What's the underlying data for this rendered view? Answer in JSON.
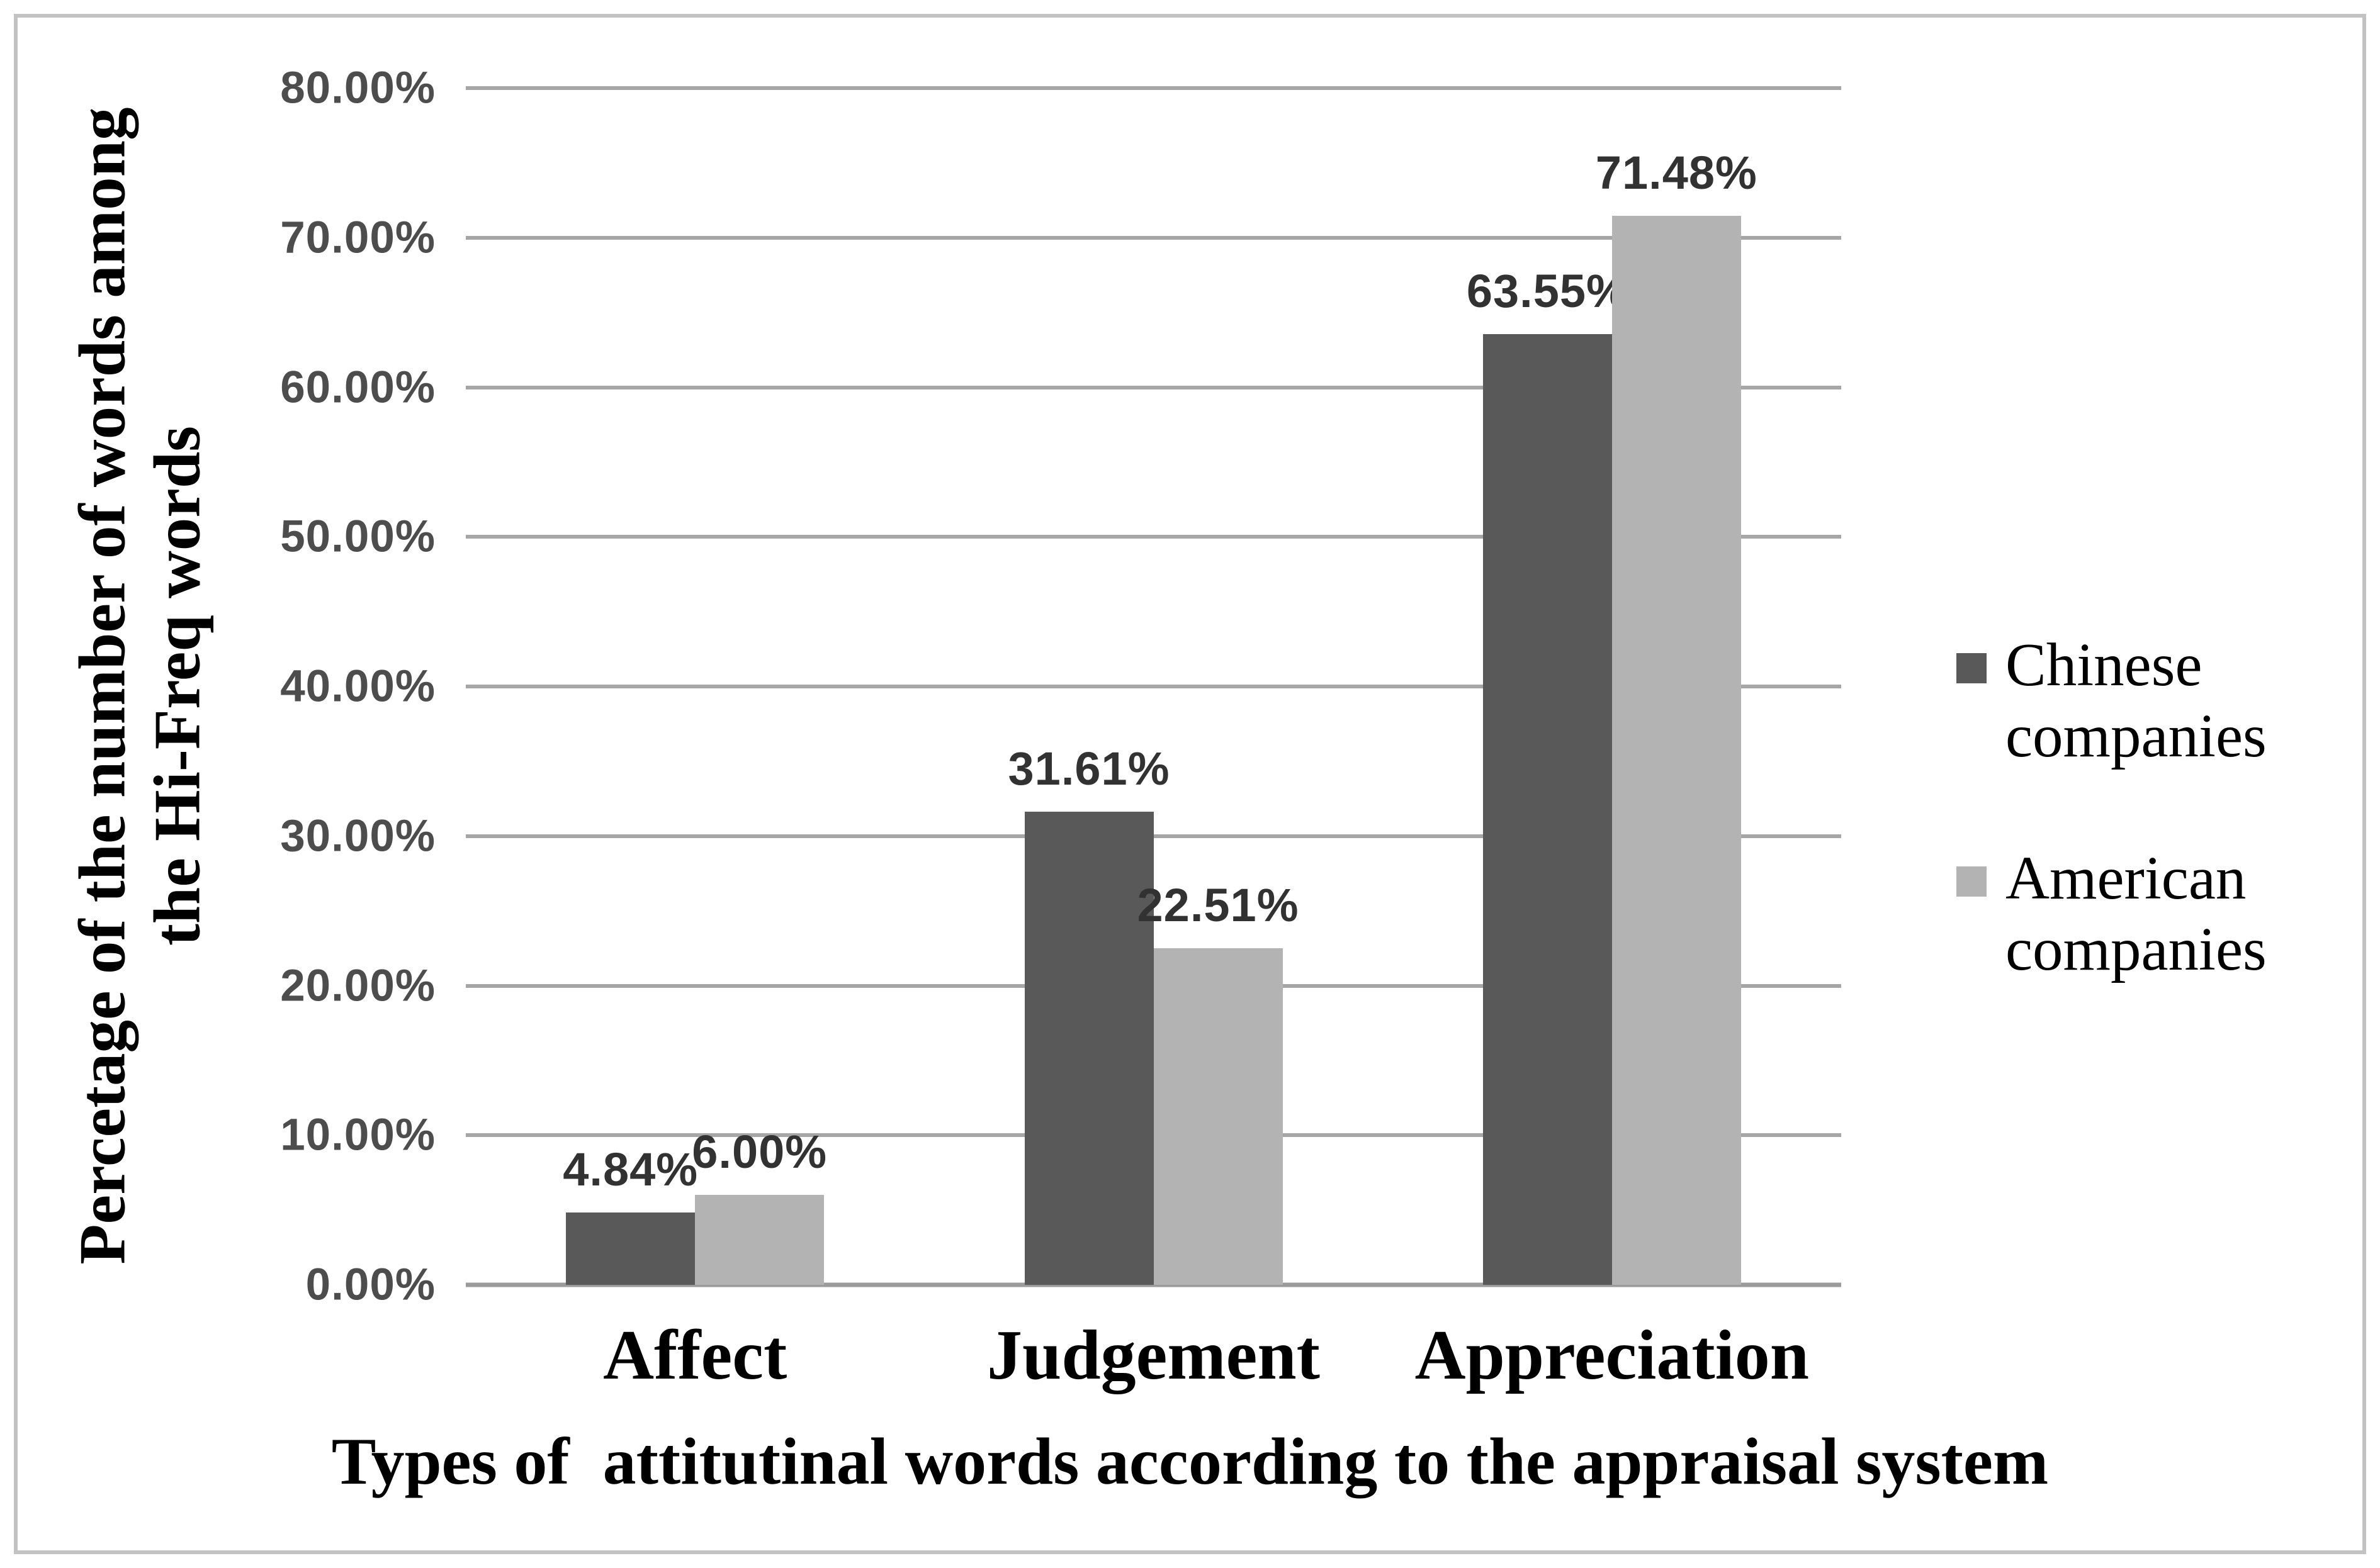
{
  "chart_data": {
    "type": "bar",
    "title": "",
    "categories": [
      "Affect",
      "Judgement",
      "Appreciation"
    ],
    "series": [
      {
        "name": "Chinese companies",
        "color": "#595959",
        "values": [
          4.84,
          31.61,
          63.55
        ],
        "labels": [
          "4.84%",
          "31.61%",
          "63.55%"
        ]
      },
      {
        "name": "American companies",
        "color": "#b3b3b3",
        "values": [
          6.0,
          22.51,
          71.48
        ],
        "labels": [
          "6.00%",
          "22.51%",
          "71.48%"
        ]
      }
    ],
    "xlabel": "Types of  attitutinal words according to the appraisal system",
    "ylabel": "Percetage of the number of words among\nthe Hi-Freq words",
    "ylim": [
      0,
      80
    ],
    "ytick_step": 10,
    "ytick_labels": [
      "0.00%",
      "10.00%",
      "20.00%",
      "30.00%",
      "40.00%",
      "50.00%",
      "60.00%",
      "70.00%",
      "80.00%"
    ],
    "grid": true,
    "legend_position": "right"
  },
  "colors": {
    "series_dark": "#595959",
    "series_light": "#b3b3b3",
    "gridline": "#a6a6a6",
    "axis_line": "#9b9b9b",
    "tick_label": "#4d4d4d",
    "data_label": "#323232",
    "frame_border": "#c2c2c2",
    "background": "#ffffff"
  }
}
